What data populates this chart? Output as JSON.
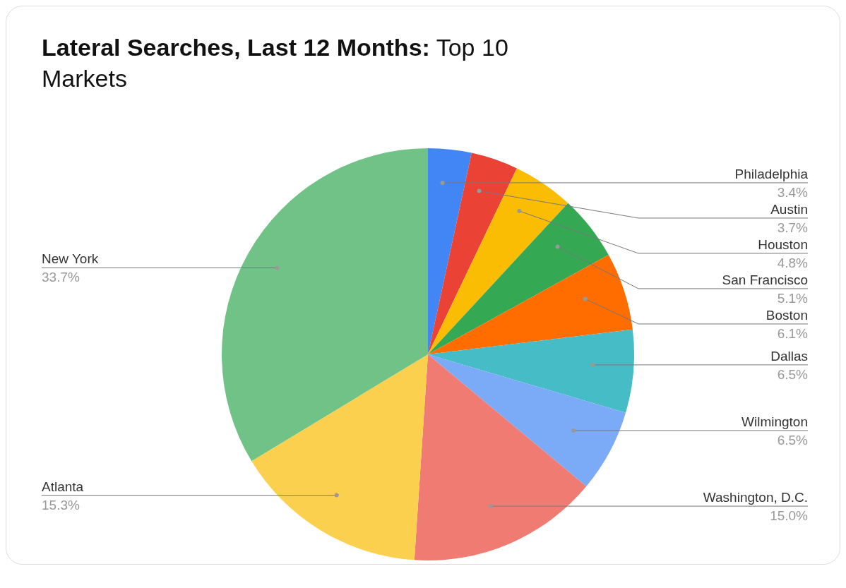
{
  "chart_data": {
    "type": "pie",
    "title": "Lateral Searches, Last 12 Months: Top 10 Markets",
    "categories": [
      "Philadelphia",
      "Austin",
      "Houston",
      "San Francisco",
      "Boston",
      "Dallas",
      "Wilmington",
      "Washington, D.C.",
      "Atlanta",
      "New York"
    ],
    "values": [
      3.4,
      3.7,
      4.8,
      5.1,
      6.1,
      6.5,
      6.5,
      15.0,
      15.3,
      33.7
    ],
    "value_labels": [
      "3.4%",
      "3.7%",
      "4.8%",
      "5.1%",
      "6.1%",
      "6.5%",
      "6.5%",
      "15.0%",
      "15.3%",
      "33.7%"
    ],
    "colors": [
      "#4285f4",
      "#ea4335",
      "#fbbc04",
      "#34a853",
      "#ff6d01",
      "#46bdc6",
      "#7baaf7",
      "#f07b72",
      "#fcd04f",
      "#71c287"
    ],
    "legend": false
  }
}
